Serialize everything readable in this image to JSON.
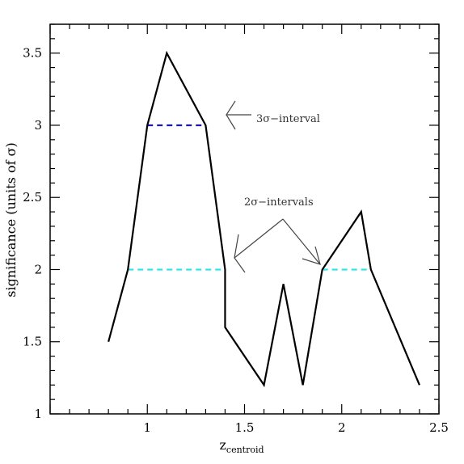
{
  "chart_data": {
    "type": "line",
    "xlabel": "z",
    "xlabel_subscript": "centroid",
    "ylabel": "significance (units of σ)",
    "xlim": [
      0.5,
      2.5
    ],
    "ylim": [
      1,
      3.7
    ],
    "x_ticks": [
      "1",
      "1.5",
      "2",
      "2.5"
    ],
    "y_ticks": [
      "1",
      "1.5",
      "2",
      "2.5",
      "3",
      "3.5"
    ],
    "series": [
      {
        "x": [
          0.8,
          0.9,
          1.0,
          1.1,
          1.3,
          1.4,
          1.4,
          1.6,
          1.7,
          1.8,
          1.9,
          2.1,
          2.15,
          2.4
        ],
        "y": [
          1.5,
          2.0,
          3.0,
          3.5,
          3.0,
          2.0,
          1.6,
          1.2,
          1.9,
          1.2,
          2.0,
          2.4,
          2.0,
          1.2
        ],
        "color": "#000000"
      }
    ],
    "intervals": [
      {
        "x": [
          1.0,
          1.3
        ],
        "y": 3.0,
        "color": "#1a1aa6",
        "style": "dashed"
      },
      {
        "x": [
          0.9,
          1.4
        ],
        "y": 2.0,
        "color": "#33e6e6",
        "style": "dashed"
      },
      {
        "x": [
          1.9,
          2.15
        ],
        "y": 2.0,
        "color": "#33e6e6",
        "style": "dashed"
      }
    ],
    "annotations": [
      {
        "text": "3σ−interval"
      },
      {
        "text": "2σ−intervals"
      }
    ]
  }
}
